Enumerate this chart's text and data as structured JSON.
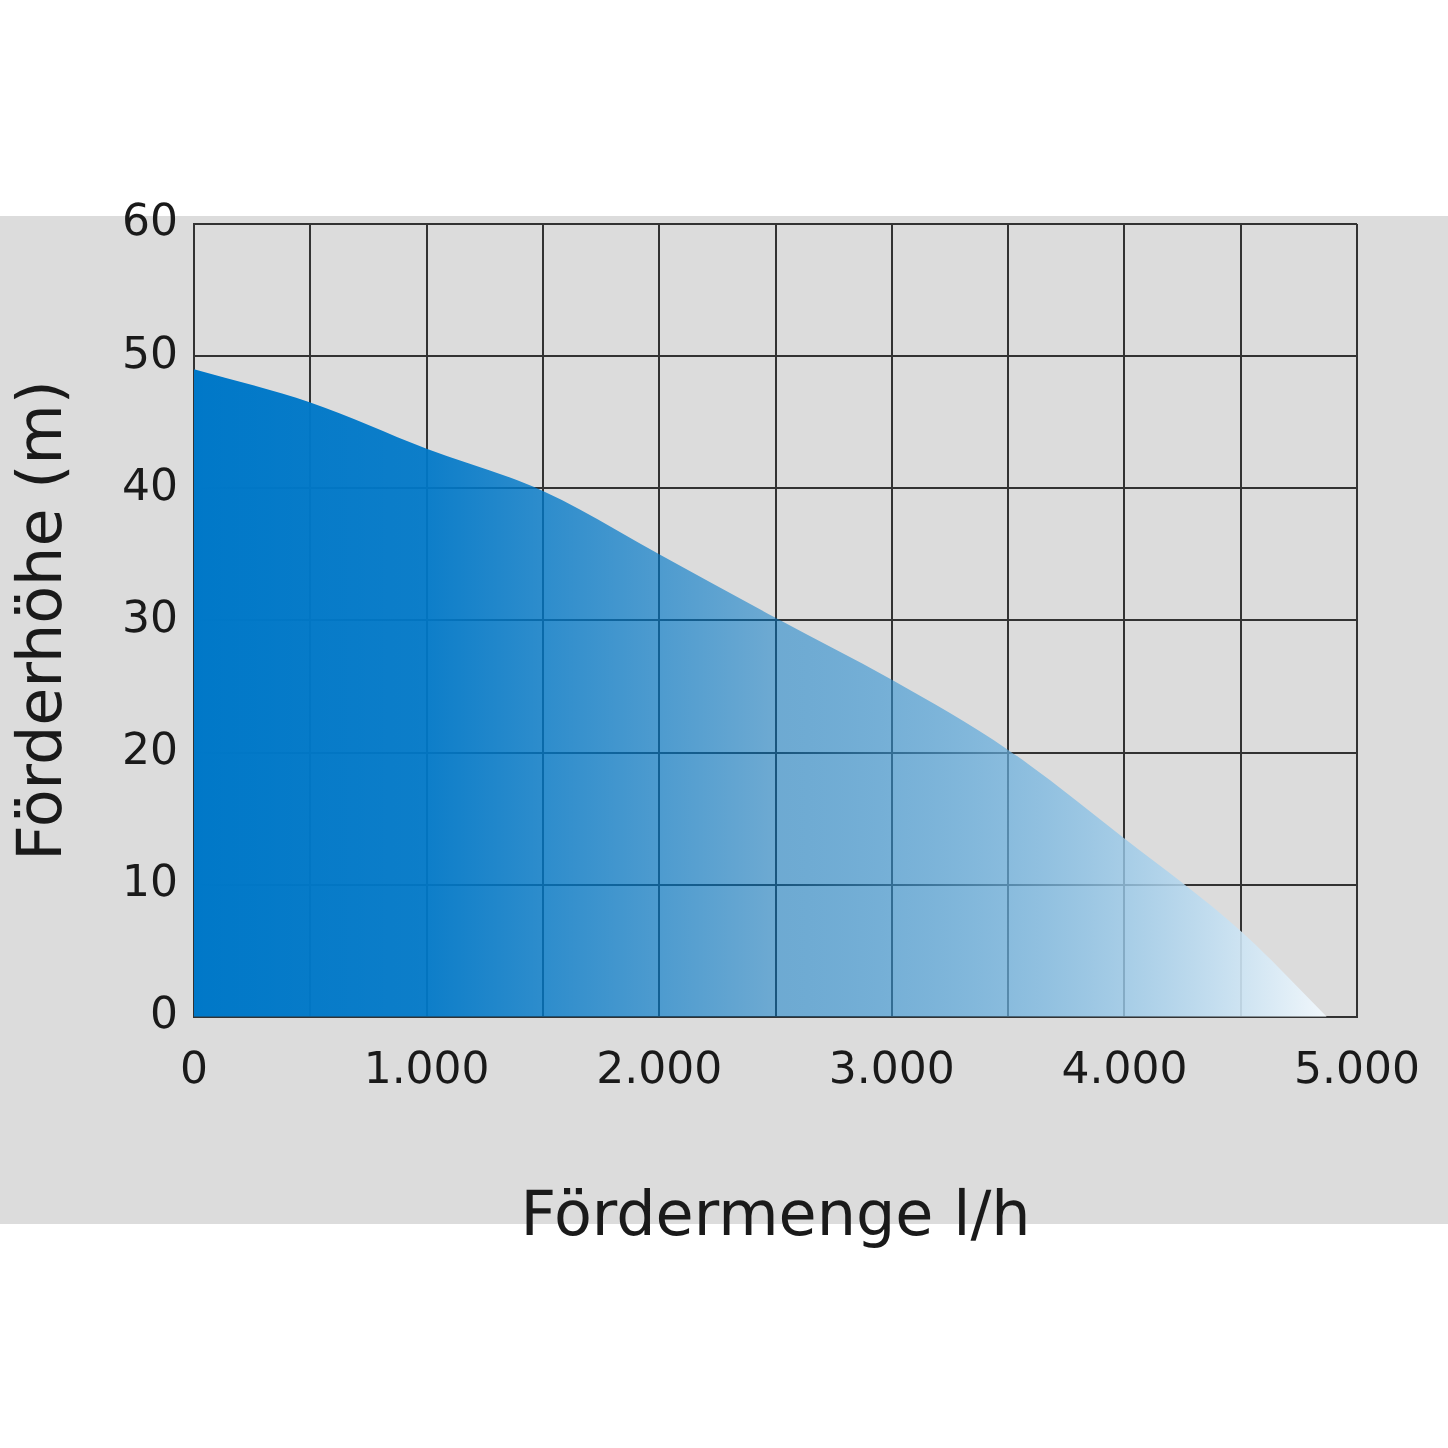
{
  "chart_data": {
    "type": "area",
    "xlabel": "Fördermenge l/h",
    "ylabel": "Förderhöhe (m)",
    "x": [
      0,
      500,
      1000,
      1500,
      2000,
      2500,
      3000,
      3500,
      4000,
      4500,
      4870
    ],
    "values": [
      49,
      46.5,
      43,
      39.8,
      35,
      30.2,
      25.5,
      20.2,
      13.5,
      6.5,
      0
    ],
    "color": "#0078c8",
    "xlim": [
      0,
      5000
    ],
    "xticks": [
      0,
      {
        "value": 500,
        "label": null
      },
      {
        "value": 1000,
        "label": "1.000"
      },
      {
        "value": 1500,
        "label": null
      },
      {
        "value": 2000,
        "label": "2.000"
      },
      {
        "value": 2500,
        "label": null
      },
      {
        "value": 3000,
        "label": "3.000"
      },
      {
        "value": 3500,
        "label": null
      },
      {
        "value": 4000,
        "label": "4.000"
      },
      {
        "value": 4500,
        "label": null
      },
      {
        "value": 5000,
        "label": "5.000"
      }
    ],
    "ylim": [
      0,
      60
    ],
    "yticks": [
      0,
      10,
      20,
      30,
      40,
      50,
      60
    ],
    "grid": true,
    "marker": "none",
    "legend": false
  }
}
